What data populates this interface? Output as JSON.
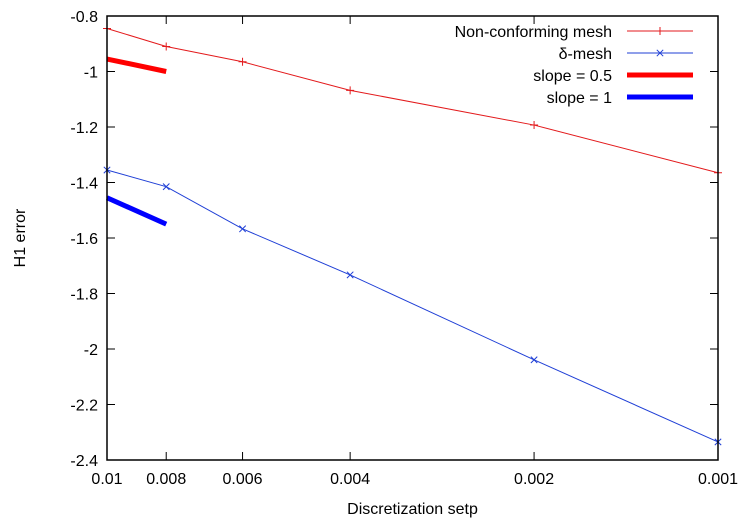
{
  "chart_data": {
    "type": "line",
    "title": "",
    "xlabel": "Discretization setp",
    "ylabel": "H1 error",
    "x_scale": "log-reversed",
    "xlim": [
      0.01,
      0.001
    ],
    "ylim": [
      -2.4,
      -0.8
    ],
    "x_ticks": [
      0.01,
      0.008,
      0.006,
      0.004,
      0.002,
      0.001
    ],
    "x_tick_labels": [
      "0.01",
      "0.008",
      "0.006",
      "0.004",
      "0.002",
      "0.001"
    ],
    "y_ticks": [
      -0.8,
      -1,
      -1.2,
      -1.4,
      -1.6,
      -1.8,
      -2,
      -2.2,
      -2.4
    ],
    "y_tick_labels": [
      "-0.8",
      "-1",
      "-1.2",
      "-1.4",
      "-1.6",
      "-1.8",
      "-2",
      "-2.2",
      "-2.4"
    ],
    "grid": false,
    "legend_position": "top-right",
    "series": [
      {
        "name": "Non-conforming mesh",
        "color": "#e31a1c",
        "marker": "plus",
        "line_width": 1,
        "x": [
          0.01,
          0.008,
          0.006,
          0.004,
          0.002,
          0.001
        ],
        "y": [
          -0.845,
          -0.91,
          -0.965,
          -1.068,
          -1.193,
          -1.365
        ]
      },
      {
        "name": "δ-mesh",
        "color": "#1f3fd6",
        "marker": "cross",
        "line_width": 1,
        "x": [
          0.01,
          0.008,
          0.006,
          0.004,
          0.002,
          0.001
        ],
        "y": [
          -1.355,
          -1.415,
          -1.567,
          -1.733,
          -2.039,
          -2.335
        ]
      },
      {
        "name": "slope = 0.5",
        "color": "#ff0000",
        "marker": "none",
        "line_width": 5,
        "x": [
          0.01,
          0.008
        ],
        "y": [
          -0.955,
          -1.0
        ]
      },
      {
        "name": "slope = 1",
        "color": "#0000ff",
        "marker": "none",
        "line_width": 5,
        "x": [
          0.01,
          0.008
        ],
        "y": [
          -1.455,
          -1.55
        ]
      }
    ]
  }
}
